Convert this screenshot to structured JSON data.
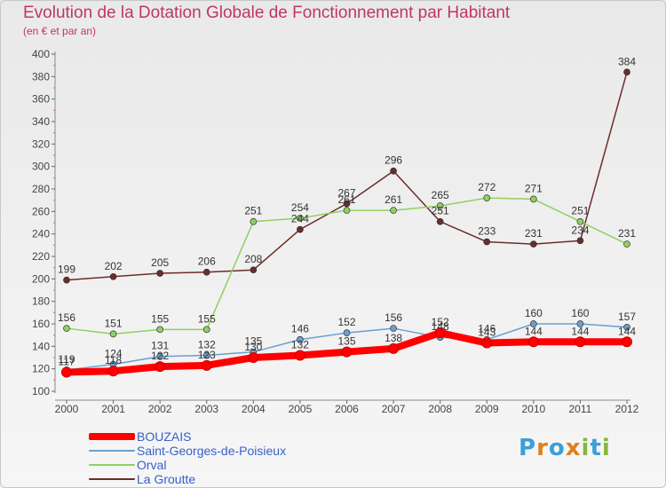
{
  "chart_data": {
    "type": "line",
    "title": "Evolution de la Dotation Globale de Fonctionnement par Habitant",
    "subtitle": "(en € et par an)",
    "x": [
      "2000",
      "2001",
      "2002",
      "2003",
      "2004",
      "2005",
      "2006",
      "2007",
      "2008",
      "2009",
      "2010",
      "2011",
      "2012"
    ],
    "ylim": [
      100,
      400
    ],
    "yticks": [
      100,
      120,
      140,
      160,
      180,
      200,
      220,
      240,
      260,
      280,
      300,
      320,
      340,
      360,
      380,
      400
    ],
    "grid": false,
    "legend": "bottom-left",
    "series": [
      {
        "name": "BOUZAIS",
        "color": "#ff0000",
        "values": [
          117,
          118,
          122,
          123,
          130,
          132,
          135,
          138,
          152,
          143,
          144,
          144,
          144
        ]
      },
      {
        "name": "Saint-Georges-de-Poisieux",
        "color": "#6a9fd0",
        "values": [
          119,
          124,
          131,
          132,
          135,
          146,
          152,
          156,
          148,
          146,
          160,
          160,
          157
        ]
      },
      {
        "name": "Orval",
        "color": "#8fd060",
        "values": [
          156,
          151,
          155,
          155,
          251,
          254,
          261,
          261,
          265,
          272,
          271,
          251,
          231
        ]
      },
      {
        "name": "La Groutte",
        "color": "#6b2c2c",
        "values": [
          199,
          202,
          205,
          206,
          208,
          244,
          267,
          296,
          251,
          233,
          231,
          234,
          384
        ]
      }
    ]
  },
  "logo": {
    "letters": [
      "P",
      "r",
      "o",
      "x",
      "i",
      "t",
      "i"
    ]
  }
}
